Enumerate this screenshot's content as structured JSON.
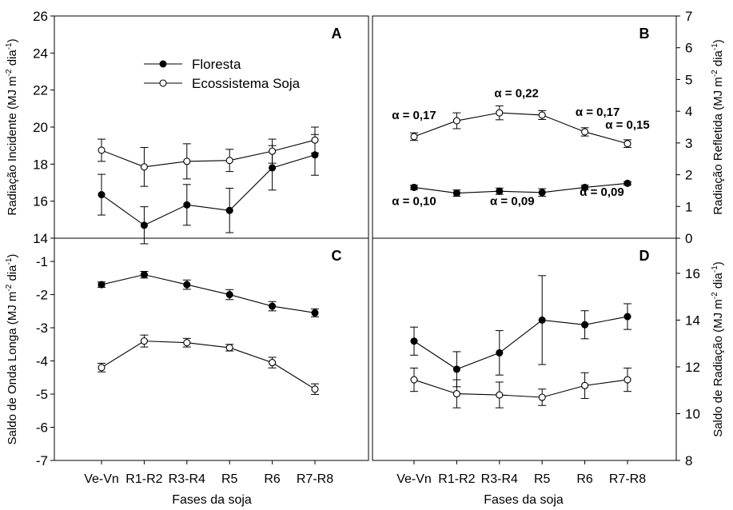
{
  "categories": [
    "Ve-Vn",
    "R1-R2",
    "R3-R4",
    "R5",
    "R6",
    "R7-R8"
  ],
  "legend": {
    "floresta": "Floresta",
    "soja": "Ecossistema Soja"
  },
  "xlabel": "Fases da soja",
  "chart_data": [
    {
      "type": "line",
      "panel_label": "A",
      "ylabel": "Radiação Incidente (MJ m⁻² dia⁻¹)",
      "ylim": [
        14,
        26
      ],
      "yticks": [
        "14",
        "16",
        "18",
        "20",
        "22",
        "24",
        "26"
      ],
      "yaxis_side": "left",
      "legend_placement": "upper-left",
      "series": [
        {
          "name": "Floresta",
          "marker": "filled",
          "values": [
            16.35,
            14.7,
            15.8,
            15.5,
            17.8,
            18.5
          ],
          "errors": [
            1.1,
            1.0,
            1.1,
            1.2,
            1.2,
            1.1
          ]
        },
        {
          "name": "Ecossistema Soja",
          "marker": "open",
          "values": [
            18.75,
            17.85,
            18.15,
            18.2,
            18.7,
            19.3
          ],
          "errors": [
            0.6,
            1.05,
            0.95,
            0.6,
            0.65,
            0.7
          ]
        }
      ]
    },
    {
      "type": "line",
      "panel_label": "B",
      "ylabel": "Radiação Refletida (MJ m⁻² dia⁻¹)",
      "ylim": [
        0,
        7
      ],
      "yticks": [
        "0",
        "1",
        "2",
        "3",
        "4",
        "5",
        "6",
        "7"
      ],
      "yaxis_side": "right",
      "series": [
        {
          "name": "Floresta",
          "marker": "filled",
          "values": [
            1.6,
            1.42,
            1.48,
            1.44,
            1.6,
            1.73
          ],
          "errors": [
            0.07,
            0.1,
            0.1,
            0.12,
            0.07,
            0.05
          ]
        },
        {
          "name": "Ecossistema Soja",
          "marker": "open",
          "values": [
            3.2,
            3.7,
            3.95,
            3.88,
            3.35,
            2.98
          ],
          "errors": [
            0.12,
            0.25,
            0.22,
            0.14,
            0.13,
            0.12
          ]
        }
      ],
      "annotations": [
        {
          "text": "α = 0,17",
          "x": 0,
          "y": 3.75
        },
        {
          "text": "α = 0,22",
          "x": 2.4,
          "y": 4.45
        },
        {
          "text": "α = 0,17",
          "x": 4.3,
          "y": 3.85
        },
        {
          "text": "α = 0,15",
          "x": 5.0,
          "y": 3.45
        },
        {
          "text": "α = 0,10",
          "x": 0,
          "y": 1.05
        },
        {
          "text": "α = 0,09",
          "x": 2.3,
          "y": 1.05
        },
        {
          "text": "α = 0,09",
          "x": 4.4,
          "y": 1.33
        }
      ]
    },
    {
      "type": "line",
      "panel_label": "C",
      "ylabel": "Saldo de Onda Longa (MJ m⁻² dia⁻¹)",
      "ylim": [
        -7,
        -0.3
      ],
      "yticks": [
        "-1",
        "-2",
        "-3",
        "-4",
        "-5",
        "-6",
        "-7"
      ],
      "yaxis_side": "left",
      "series": [
        {
          "name": "Floresta",
          "marker": "filled",
          "values": [
            -1.7,
            -1.4,
            -1.7,
            -2.0,
            -2.35,
            -2.55
          ],
          "errors": [
            0.08,
            0.1,
            0.14,
            0.15,
            0.14,
            0.12
          ]
        },
        {
          "name": "Ecossistema Soja",
          "marker": "open",
          "values": [
            -4.2,
            -3.4,
            -3.45,
            -3.6,
            -4.05,
            -4.85
          ],
          "errors": [
            0.13,
            0.18,
            0.13,
            0.1,
            0.16,
            0.16
          ]
        }
      ]
    },
    {
      "type": "line",
      "panel_label": "D",
      "ylabel": "Saldo de Radiação (MJ m⁻² dia⁻¹)",
      "ylim": [
        8,
        17.5
      ],
      "yticks": [
        "8",
        "10",
        "12",
        "14",
        "16"
      ],
      "yaxis_side": "right",
      "series": [
        {
          "name": "Floresta",
          "marker": "filled",
          "values": [
            13.1,
            11.9,
            12.6,
            14.0,
            13.8,
            14.15
          ],
          "errors": [
            0.6,
            0.75,
            0.95,
            1.9,
            0.6,
            0.55
          ]
        },
        {
          "name": "Ecossistema Soja",
          "marker": "open",
          "values": [
            11.45,
            10.85,
            10.8,
            10.7,
            11.2,
            11.45
          ],
          "errors": [
            0.5,
            0.6,
            0.55,
            0.35,
            0.55,
            0.5
          ]
        }
      ]
    }
  ]
}
